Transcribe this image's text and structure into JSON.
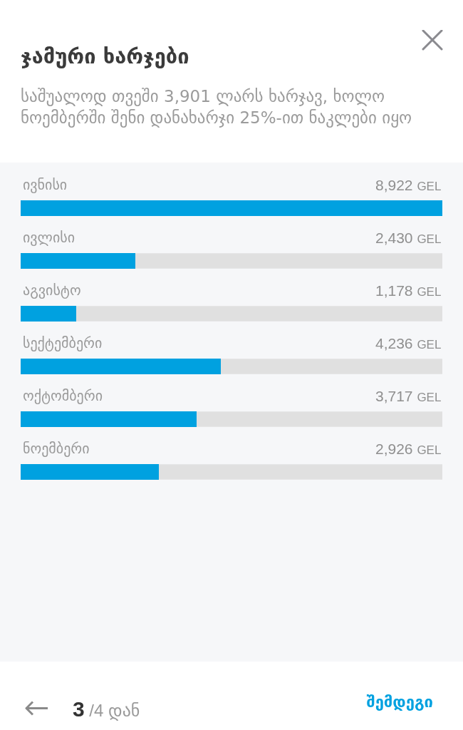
{
  "chart_data": {
    "type": "bar",
    "orientation": "horizontal",
    "title": "ჯამური ხარჯები",
    "subtitle": "საშუალოდ თვეში 3,901 ლარს ხარჯავ, ხოლო ნოემბერში შენი დანახარჯი 25%-ით ნაკლები იყო",
    "categories": [
      "ივნისი",
      "ივლისი",
      "აგვისტო",
      "სექტემბერი",
      "ოქტომბერი",
      "ნოემბერი"
    ],
    "values": [
      8922,
      2430,
      1178,
      4236,
      3717,
      2926
    ],
    "value_labels": [
      "8,922 GEL",
      "2,430 GEL",
      "1,178 GEL",
      "4,236 GEL",
      "3,717 GEL",
      "2,926 GEL"
    ],
    "color": "#00a1e0",
    "xlim": [
      0,
      8922
    ],
    "tick_labels": "y",
    "annotations": [
      "3 /4 დან",
      "შემდეგი"
    ]
  }
}
